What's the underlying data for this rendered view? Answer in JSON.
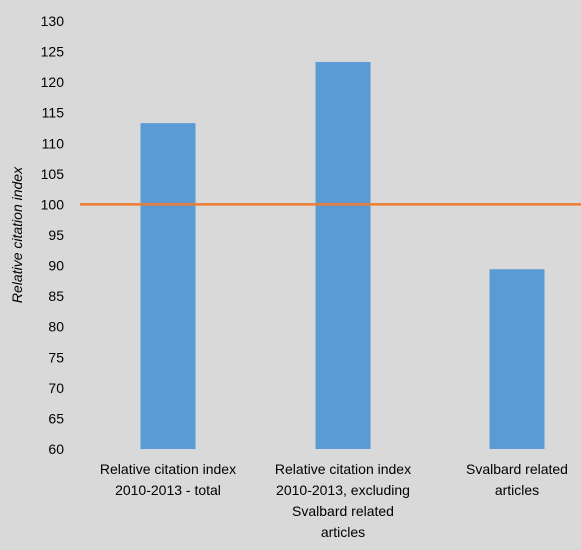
{
  "chart_data": {
    "type": "bar",
    "title": "",
    "xlabel": "",
    "ylabel": "Relative citation index",
    "ylim": [
      60,
      130
    ],
    "yticks": [
      60,
      65,
      70,
      75,
      80,
      85,
      90,
      95,
      100,
      105,
      110,
      115,
      120,
      125,
      130
    ],
    "categories": [
      [
        "Relative citation index",
        "2010-2013 - total"
      ],
      [
        "Relative citation index",
        "2010-2013, excluding",
        "Svalbard related",
        "articles"
      ],
      [
        "Svalbard related",
        "articles"
      ]
    ],
    "values": [
      113.3,
      123.3,
      89.4
    ],
    "reference_line": {
      "value": 100,
      "color": "#ed7d31"
    },
    "bar_color": "#5b9bd5",
    "background": "#d9d9d9",
    "grid": false,
    "legend": "none"
  }
}
